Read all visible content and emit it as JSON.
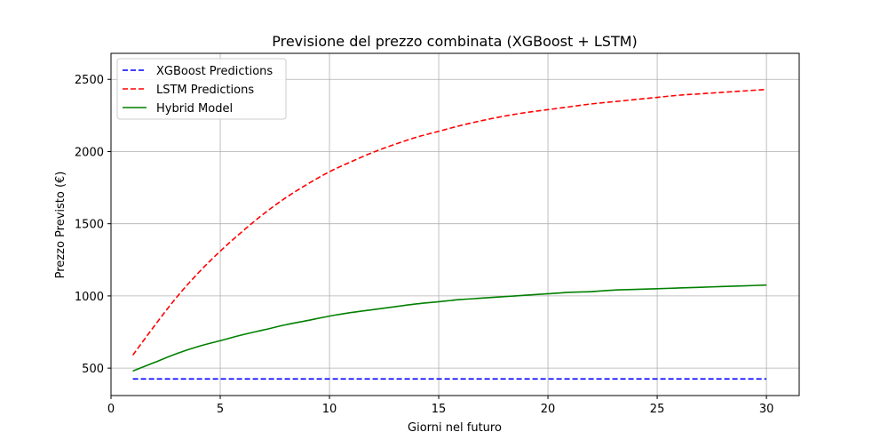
{
  "chart_data": {
    "type": "line",
    "title": "Previsione del prezzo combinata (XGBoost + LSTM)",
    "xlabel": "Giorni nel futuro",
    "ylabel": "Prezzo Previsto (€)",
    "xlim": [
      0,
      31.5
    ],
    "ylim": [
      310,
      2680
    ],
    "xticks": [
      0,
      5,
      10,
      15,
      20,
      25,
      30
    ],
    "yticks": [
      500,
      1000,
      1500,
      2000,
      2500
    ],
    "grid": true,
    "legend_position": "upper left",
    "x": [
      1,
      2,
      3,
      4,
      5,
      6,
      7,
      8,
      9,
      10,
      11,
      12,
      13,
      14,
      15,
      16,
      17,
      18,
      19,
      20,
      21,
      22,
      23,
      24,
      25,
      26,
      27,
      28,
      29,
      30
    ],
    "series": [
      {
        "name": "XGBoost Predictions",
        "color": "#0000ff",
        "dash": "dashed",
        "values": [
          425,
          425,
          425,
          425,
          425,
          425,
          425,
          425,
          425,
          425,
          425,
          425,
          425,
          425,
          425,
          425,
          425,
          425,
          425,
          425,
          425,
          425,
          425,
          425,
          425,
          425,
          425,
          425,
          425,
          425
        ]
      },
      {
        "name": "LSTM Predictions",
        "color": "#ff0000",
        "dash": "dashed",
        "values": [
          590,
          795,
          990,
          1160,
          1310,
          1445,
          1570,
          1680,
          1775,
          1860,
          1930,
          1995,
          2050,
          2100,
          2140,
          2180,
          2215,
          2245,
          2270,
          2290,
          2310,
          2330,
          2345,
          2360,
          2375,
          2390,
          2400,
          2410,
          2420,
          2430
        ]
      },
      {
        "name": "Hybrid Model",
        "color": "#008000",
        "dash": "solid",
        "values": [
          480,
          540,
          600,
          650,
          690,
          730,
          765,
          800,
          830,
          860,
          885,
          905,
          925,
          945,
          960,
          975,
          985,
          995,
          1005,
          1015,
          1025,
          1030,
          1040,
          1045,
          1050,
          1055,
          1060,
          1065,
          1070,
          1075
        ]
      }
    ]
  }
}
